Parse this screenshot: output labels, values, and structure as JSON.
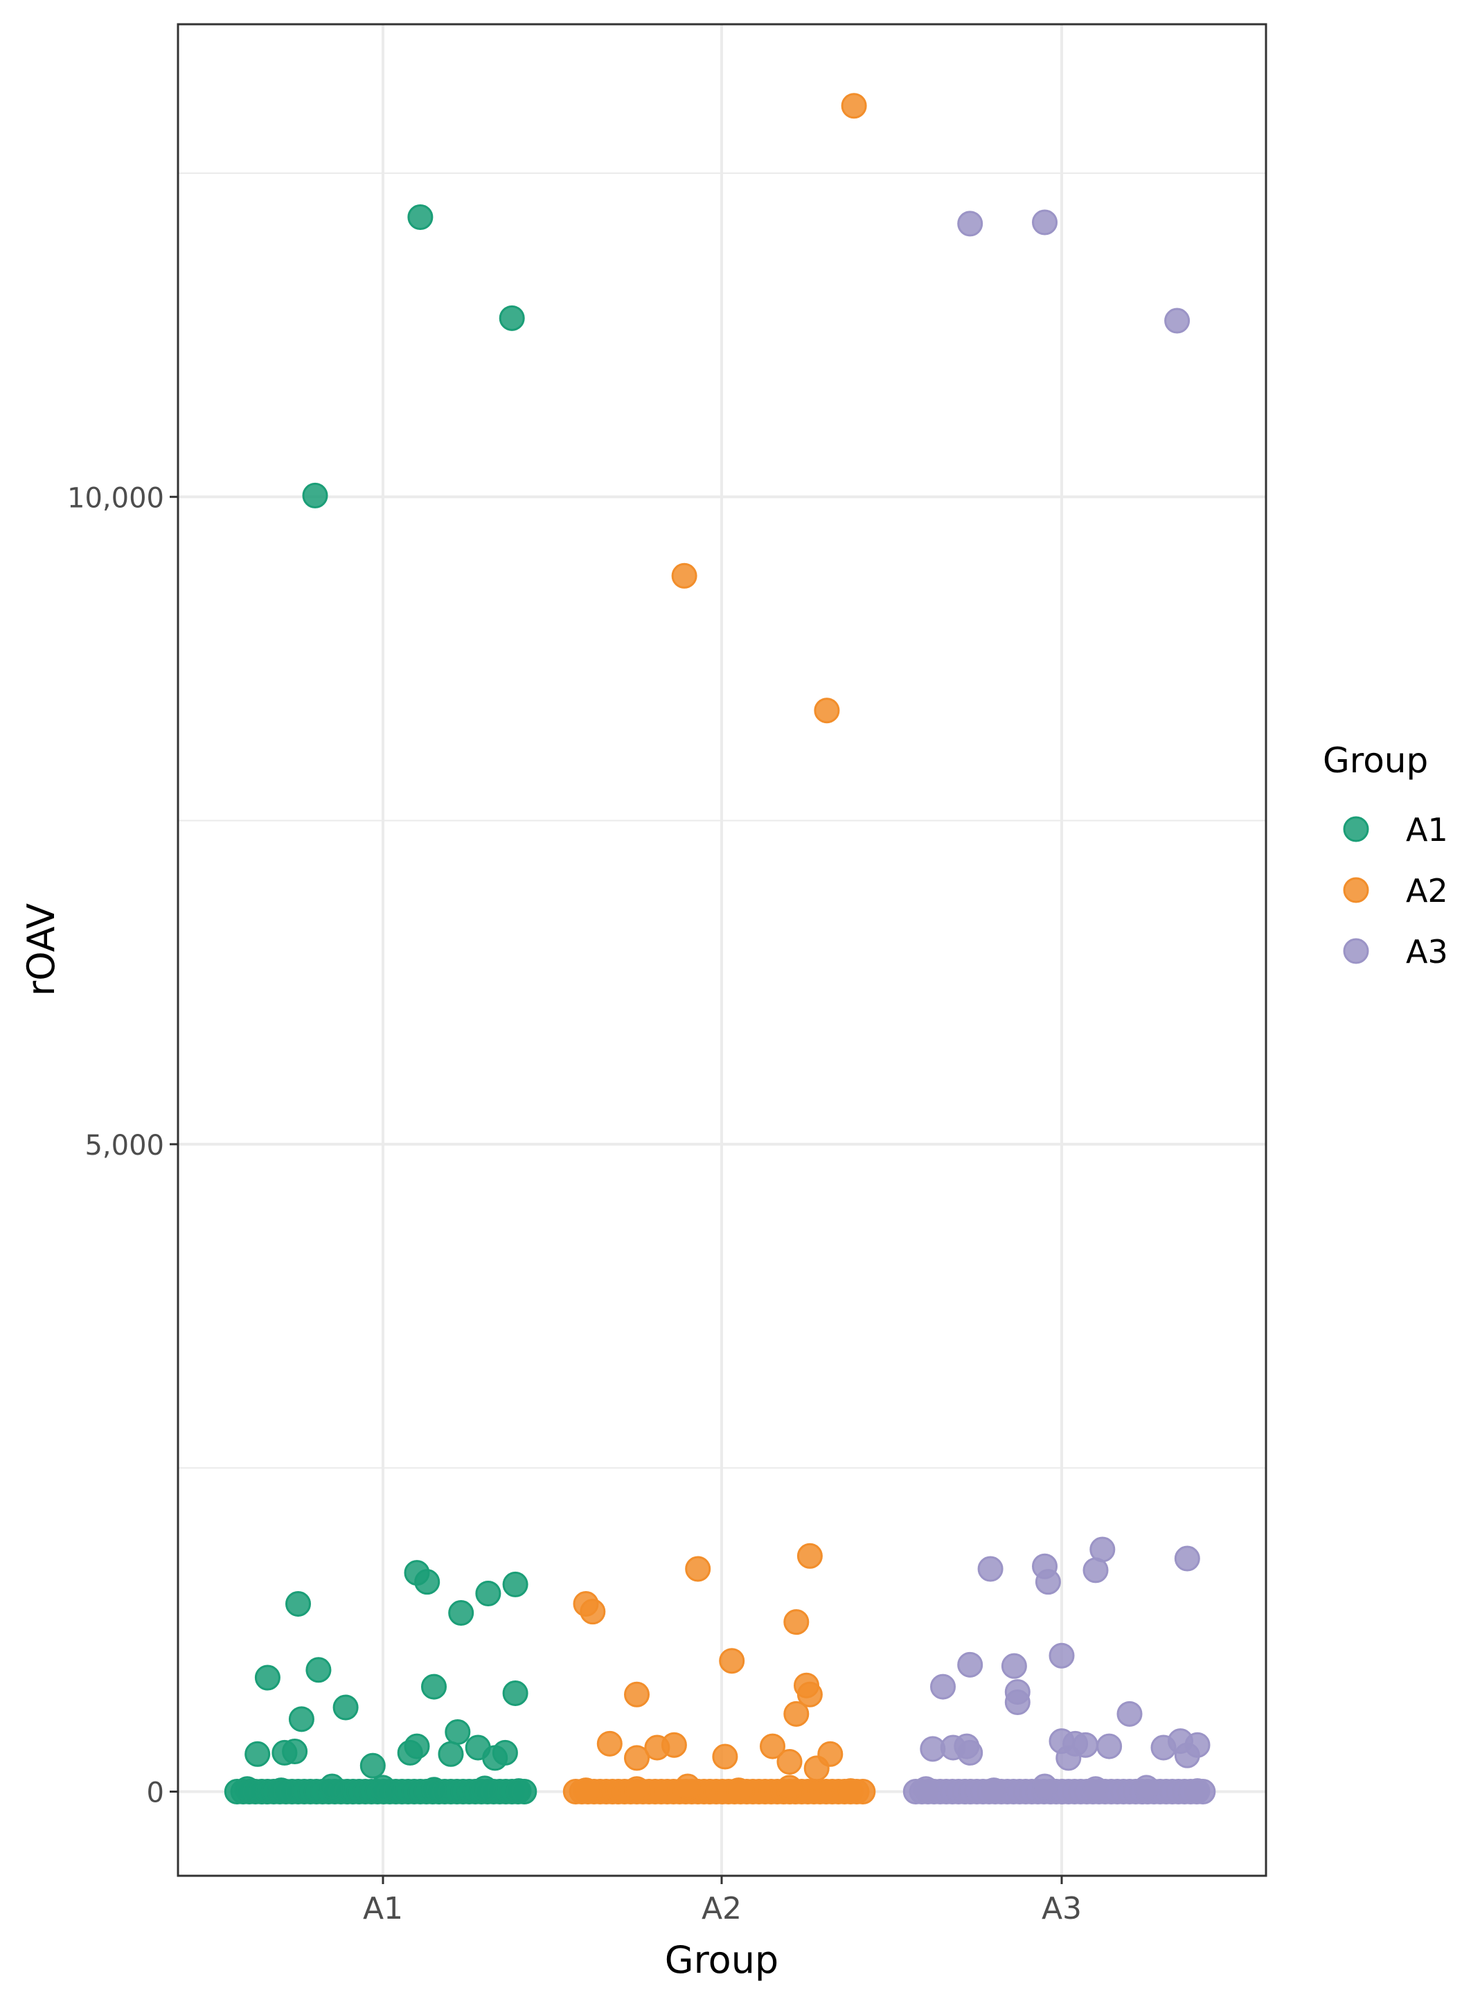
{
  "chart_data": {
    "type": "scatter",
    "title": "",
    "xlabel": "Group",
    "ylabel": "rOAV",
    "categories": [
      "A1",
      "A2",
      "A3"
    ],
    "ylim": [
      -650,
      13650
    ],
    "yticks": [
      0,
      5000,
      10000
    ],
    "ytick_labels": [
      "0",
      "5,000",
      "10,000"
    ],
    "grid": true,
    "legend": {
      "title": "Group",
      "position": "right",
      "entries": [
        "A1",
        "A2",
        "A3"
      ]
    },
    "colors": {
      "A1": "#1b9e77",
      "A2": "#f28e2b",
      "A3": "#9b94c6"
    },
    "series": [
      {
        "name": "A1",
        "points": [
          {
            "x": -0.2,
            "y": 10010
          },
          {
            "x": 0.11,
            "y": 12160
          },
          {
            "x": 0.38,
            "y": 11380
          },
          {
            "x": 0.1,
            "y": 1690
          },
          {
            "x": 0.13,
            "y": 1620
          },
          {
            "x": 0.31,
            "y": 1530
          },
          {
            "x": 0.39,
            "y": 1600
          },
          {
            "x": -0.25,
            "y": 1450
          },
          {
            "x": 0.23,
            "y": 1380
          },
          {
            "x": -0.34,
            "y": 880
          },
          {
            "x": -0.19,
            "y": 940
          },
          {
            "x": 0.15,
            "y": 810
          },
          {
            "x": 0.39,
            "y": 760
          },
          {
            "x": -0.11,
            "y": 650
          },
          {
            "x": -0.24,
            "y": 560
          },
          {
            "x": 0.22,
            "y": 460
          },
          {
            "x": 0.1,
            "y": 350
          },
          {
            "x": 0.28,
            "y": 340
          },
          {
            "x": -0.37,
            "y": 290
          },
          {
            "x": -0.29,
            "y": 300
          },
          {
            "x": -0.26,
            "y": 310
          },
          {
            "x": 0.08,
            "y": 300
          },
          {
            "x": 0.2,
            "y": 290
          },
          {
            "x": 0.33,
            "y": 260
          },
          {
            "x": 0.36,
            "y": 300
          },
          {
            "x": -0.03,
            "y": 200
          },
          {
            "x": -0.4,
            "y": 20
          },
          {
            "x": -0.3,
            "y": 10
          },
          {
            "x": -0.15,
            "y": 40
          },
          {
            "x": 0.0,
            "y": 30
          },
          {
            "x": 0.15,
            "y": 15
          },
          {
            "x": 0.3,
            "y": 25
          },
          {
            "x": 0.4,
            "y": 5
          }
        ]
      },
      {
        "name": "A2",
        "points": [
          {
            "x": 0.39,
            "y": 13020
          },
          {
            "x": -0.11,
            "y": 9390
          },
          {
            "x": 0.31,
            "y": 8350
          },
          {
            "x": -0.07,
            "y": 1720
          },
          {
            "x": 0.26,
            "y": 1820
          },
          {
            "x": -0.4,
            "y": 1450
          },
          {
            "x": -0.38,
            "y": 1390
          },
          {
            "x": 0.22,
            "y": 1310
          },
          {
            "x": 0.03,
            "y": 1010
          },
          {
            "x": -0.25,
            "y": 750
          },
          {
            "x": 0.25,
            "y": 820
          },
          {
            "x": 0.26,
            "y": 750
          },
          {
            "x": 0.22,
            "y": 600
          },
          {
            "x": -0.33,
            "y": 370
          },
          {
            "x": -0.19,
            "y": 340
          },
          {
            "x": -0.14,
            "y": 360
          },
          {
            "x": 0.15,
            "y": 350
          },
          {
            "x": 0.32,
            "y": 290
          },
          {
            "x": 0.01,
            "y": 270
          },
          {
            "x": -0.25,
            "y": 260
          },
          {
            "x": 0.2,
            "y": 230
          },
          {
            "x": 0.28,
            "y": 180
          },
          {
            "x": -0.4,
            "y": 10
          },
          {
            "x": -0.25,
            "y": 20
          },
          {
            "x": -0.1,
            "y": 40
          },
          {
            "x": 0.05,
            "y": 10
          },
          {
            "x": 0.2,
            "y": 30
          },
          {
            "x": 0.38,
            "y": 5
          }
        ]
      },
      {
        "name": "A3",
        "points": [
          {
            "x": -0.27,
            "y": 12110
          },
          {
            "x": -0.05,
            "y": 12120
          },
          {
            "x": 0.34,
            "y": 11360
          },
          {
            "x": -0.21,
            "y": 1720
          },
          {
            "x": -0.05,
            "y": 1740
          },
          {
            "x": 0.12,
            "y": 1870
          },
          {
            "x": 0.1,
            "y": 1710
          },
          {
            "x": -0.04,
            "y": 1620
          },
          {
            "x": 0.37,
            "y": 1800
          },
          {
            "x": -0.27,
            "y": 980
          },
          {
            "x": -0.14,
            "y": 970
          },
          {
            "x": 0.0,
            "y": 1050
          },
          {
            "x": -0.35,
            "y": 810
          },
          {
            "x": -0.13,
            "y": 770
          },
          {
            "x": -0.13,
            "y": 690
          },
          {
            "x": 0.2,
            "y": 600
          },
          {
            "x": -0.38,
            "y": 330
          },
          {
            "x": -0.32,
            "y": 340
          },
          {
            "x": -0.28,
            "y": 350
          },
          {
            "x": -0.27,
            "y": 300
          },
          {
            "x": 0.0,
            "y": 390
          },
          {
            "x": 0.04,
            "y": 370
          },
          {
            "x": 0.07,
            "y": 360
          },
          {
            "x": 0.02,
            "y": 260
          },
          {
            "x": 0.14,
            "y": 350
          },
          {
            "x": 0.3,
            "y": 340
          },
          {
            "x": 0.35,
            "y": 390
          },
          {
            "x": 0.4,
            "y": 360
          },
          {
            "x": 0.37,
            "y": 280
          },
          {
            "x": -0.4,
            "y": 20
          },
          {
            "x": -0.2,
            "y": 10
          },
          {
            "x": -0.05,
            "y": 40
          },
          {
            "x": 0.1,
            "y": 20
          },
          {
            "x": 0.25,
            "y": 30
          },
          {
            "x": 0.4,
            "y": 5
          }
        ]
      }
    ]
  }
}
